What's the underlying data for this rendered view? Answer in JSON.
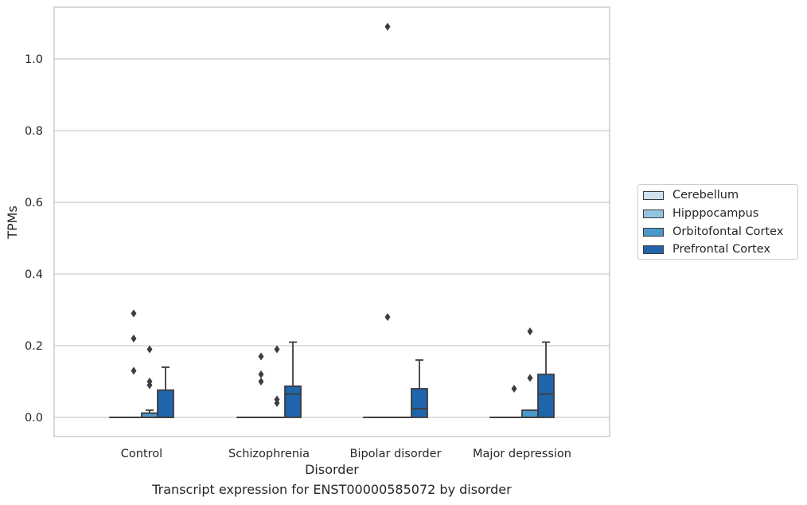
{
  "chart_data": {
    "type": "box",
    "xlabel": "Disorder",
    "ylabel": "TPMs",
    "categories": [
      "Control",
      "Schizophrenia",
      "Bipolar disorder",
      "Major depression"
    ],
    "ylim": [
      -0.05,
      1.15
    ],
    "yticks": [
      "0.0",
      "0.2",
      "0.4",
      "0.6",
      "0.8",
      "1.0"
    ],
    "grid": "horizontal",
    "legend_placement": "right",
    "series": [
      {
        "name": "Cerebellum",
        "color": "#d0e1f2",
        "boxes": [
          {
            "q1": 0,
            "median": 0,
            "q3": 0,
            "whisker_low": 0,
            "whisker_high": 0,
            "outliers": []
          },
          {
            "q1": 0,
            "median": 0,
            "q3": 0,
            "whisker_low": 0,
            "whisker_high": 0,
            "outliers": []
          },
          {
            "q1": 0,
            "median": 0,
            "q3": 0,
            "whisker_low": 0,
            "whisker_high": 0,
            "outliers": []
          },
          {
            "q1": 0,
            "median": 0,
            "q3": 0,
            "whisker_low": 0,
            "whisker_high": 0,
            "outliers": []
          }
        ]
      },
      {
        "name": "Hipppocampus",
        "color": "#94c4df",
        "boxes": [
          {
            "q1": 0,
            "median": 0,
            "q3": 0,
            "whisker_low": 0,
            "whisker_high": 0,
            "outliers": [
              0.29,
              0.22,
              0.13
            ]
          },
          {
            "q1": 0,
            "median": 0,
            "q3": 0,
            "whisker_low": 0,
            "whisker_high": 0,
            "outliers": [
              0.17,
              0.12,
              0.1
            ]
          },
          {
            "q1": 0,
            "median": 0,
            "q3": 0,
            "whisker_low": 0,
            "whisker_high": 0,
            "outliers": [
              1.09,
              0.28
            ]
          },
          {
            "q1": 0,
            "median": 0,
            "q3": 0,
            "whisker_low": 0,
            "whisker_high": 0,
            "outliers": [
              0.08
            ]
          }
        ]
      },
      {
        "name": "Orbitofontal Cortex",
        "color": "#4a98c9",
        "boxes": [
          {
            "q1": 0,
            "median": 0.0,
            "q3": 0.012,
            "whisker_low": 0,
            "whisker_high": 0.02,
            "outliers": [
              0.19,
              0.1,
              0.09
            ]
          },
          {
            "q1": 0,
            "median": 0,
            "q3": 0,
            "whisker_low": 0,
            "whisker_high": 0,
            "outliers": [
              0.19,
              0.05,
              0.04
            ]
          },
          {
            "q1": 0,
            "median": 0,
            "q3": 0,
            "whisker_low": 0,
            "whisker_high": 0,
            "outliers": []
          },
          {
            "q1": 0,
            "median": 0.0,
            "q3": 0.02,
            "whisker_low": 0,
            "whisker_high": 0.02,
            "outliers": [
              0.24,
              0.11
            ]
          }
        ]
      },
      {
        "name": "Prefrontal Cortex",
        "color": "#2064ab",
        "boxes": [
          {
            "q1": 0,
            "median": 0.0,
            "q3": 0.076,
            "whisker_low": 0,
            "whisker_high": 0.14,
            "outliers": []
          },
          {
            "q1": 0,
            "median": 0.065,
            "q3": 0.087,
            "whisker_low": 0,
            "whisker_high": 0.21,
            "outliers": []
          },
          {
            "q1": 0,
            "median": 0.024,
            "q3": 0.08,
            "whisker_low": 0,
            "whisker_high": 0.16,
            "outliers": []
          },
          {
            "q1": 0,
            "median": 0.065,
            "q3": 0.12,
            "whisker_low": 0,
            "whisker_high": 0.21,
            "outliers": []
          }
        ]
      }
    ]
  },
  "caption": "Transcript expression for ENST00000585072 by disorder"
}
